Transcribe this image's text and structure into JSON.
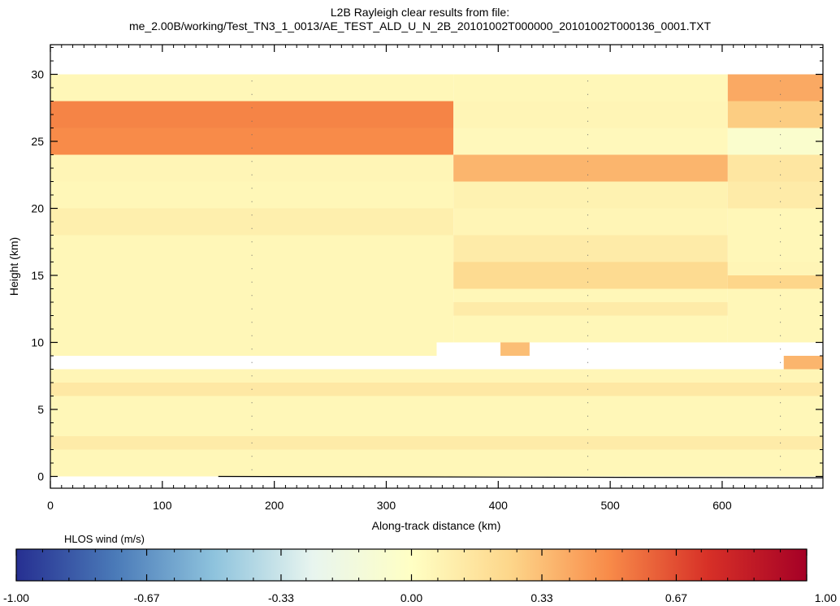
{
  "chart_data": {
    "type": "heatmap",
    "title_line1": "L2B Rayleigh clear results from file:",
    "title_line2": "me_2.00B/working/Test_TN3_1_0013/AE_TEST_ALD_U_N_2B_20101002T000000_20101002T000136_0001.TXT",
    "xlabel": "Along-track distance (km)",
    "ylabel": "Height (km)",
    "xlim": [
      0,
      690
    ],
    "ylim": [
      -1,
      32
    ],
    "xticks": [
      "0",
      "100",
      "200",
      "300",
      "400",
      "500",
      "600"
    ],
    "yticks": [
      "0",
      "5",
      "10",
      "15",
      "20",
      "25",
      "30"
    ],
    "colorbar": {
      "label": "HLOS wind (m/s)",
      "range": [
        -1.0,
        1.0
      ],
      "ticks": [
        "-1.00",
        "-0.67",
        "-0.33",
        "0.00",
        "0.33",
        "0.67",
        "1.00"
      ],
      "colors": [
        "#262f91",
        "#4a7ab8",
        "#8ec3dd",
        "#e8f5ef",
        "#ffffc4",
        "#fdd68a",
        "#f88b49",
        "#d73027",
        "#a50026"
      ]
    },
    "cells": [
      {
        "x0": 0,
        "x1": 360,
        "y0": 28,
        "y1": 30,
        "v": 0.05
      },
      {
        "x0": 0,
        "x1": 360,
        "y0": 26,
        "y1": 28,
        "v": 0.52
      },
      {
        "x0": 0,
        "x1": 360,
        "y0": 24,
        "y1": 26,
        "v": 0.5
      },
      {
        "x0": 0,
        "x1": 360,
        "y0": 22,
        "y1": 24,
        "v": 0.06
      },
      {
        "x0": 0,
        "x1": 360,
        "y0": 20,
        "y1": 22,
        "v": 0.05
      },
      {
        "x0": 0,
        "x1": 360,
        "y0": 18,
        "y1": 20,
        "v": 0.1
      },
      {
        "x0": 0,
        "x1": 360,
        "y0": 16,
        "y1": 18,
        "v": 0.05
      },
      {
        "x0": 0,
        "x1": 360,
        "y0": 14,
        "y1": 16,
        "v": 0.05
      },
      {
        "x0": 0,
        "x1": 360,
        "y0": 12,
        "y1": 14,
        "v": 0.05
      },
      {
        "x0": 0,
        "x1": 360,
        "y0": 10,
        "y1": 12,
        "v": 0.05
      },
      {
        "x0": 0,
        "x1": 345,
        "y0": 9,
        "y1": 10,
        "v": 0.05
      },
      {
        "x0": 0,
        "x1": 690,
        "y0": 7,
        "y1": 8,
        "v": 0.06
      },
      {
        "x0": 0,
        "x1": 690,
        "y0": 6,
        "y1": 7,
        "v": 0.14
      },
      {
        "x0": 0,
        "x1": 690,
        "y0": 4,
        "y1": 6,
        "v": 0.05
      },
      {
        "x0": 0,
        "x1": 690,
        "y0": 3,
        "y1": 4,
        "v": 0.05
      },
      {
        "x0": 0,
        "x1": 690,
        "y0": 2,
        "y1": 3,
        "v": 0.12
      },
      {
        "x0": 0,
        "x1": 690,
        "y0": 0,
        "y1": 2,
        "v": 0.05
      },
      {
        "x0": 360,
        "x1": 605,
        "y0": 28,
        "y1": 30,
        "v": 0.05
      },
      {
        "x0": 360,
        "x1": 605,
        "y0": 26,
        "y1": 28,
        "v": 0.06
      },
      {
        "x0": 360,
        "x1": 605,
        "y0": 24,
        "y1": 26,
        "v": 0.04
      },
      {
        "x0": 360,
        "x1": 605,
        "y0": 22,
        "y1": 24,
        "v": 0.36
      },
      {
        "x0": 360,
        "x1": 605,
        "y0": 20,
        "y1": 22,
        "v": 0.08
      },
      {
        "x0": 360,
        "x1": 605,
        "y0": 18,
        "y1": 20,
        "v": 0.06
      },
      {
        "x0": 360,
        "x1": 605,
        "y0": 16,
        "y1": 18,
        "v": 0.12
      },
      {
        "x0": 360,
        "x1": 605,
        "y0": 14,
        "y1": 16,
        "v": 0.22
      },
      {
        "x0": 360,
        "x1": 605,
        "y0": 13,
        "y1": 14,
        "v": 0.05
      },
      {
        "x0": 360,
        "x1": 605,
        "y0": 12,
        "y1": 13,
        "v": 0.12
      },
      {
        "x0": 360,
        "x1": 605,
        "y0": 10,
        "y1": 12,
        "v": 0.05
      },
      {
        "x0": 402,
        "x1": 428,
        "y0": 9,
        "y1": 10,
        "v": 0.33
      },
      {
        "x0": 605,
        "x1": 690,
        "y0": 28,
        "y1": 30,
        "v": 0.4
      },
      {
        "x0": 605,
        "x1": 690,
        "y0": 26,
        "y1": 28,
        "v": 0.28
      },
      {
        "x0": 605,
        "x1": 690,
        "y0": 24,
        "y1": 26,
        "v": -0.05
      },
      {
        "x0": 605,
        "x1": 690,
        "y0": 22,
        "y1": 24,
        "v": 0.15
      },
      {
        "x0": 605,
        "x1": 690,
        "y0": 20,
        "y1": 22,
        "v": 0.12
      },
      {
        "x0": 605,
        "x1": 690,
        "y0": 18,
        "y1": 20,
        "v": 0.05
      },
      {
        "x0": 605,
        "x1": 690,
        "y0": 16,
        "y1": 18,
        "v": 0.05
      },
      {
        "x0": 605,
        "x1": 690,
        "y0": 15,
        "y1": 16,
        "v": 0.06
      },
      {
        "x0": 605,
        "x1": 690,
        "y0": 14,
        "y1": 15,
        "v": 0.25
      },
      {
        "x0": 605,
        "x1": 690,
        "y0": 10,
        "y1": 14,
        "v": 0.05
      },
      {
        "x0": 655,
        "x1": 690,
        "y0": 8,
        "y1": 9,
        "v": 0.36
      }
    ],
    "ground_line": [
      [
        150,
        0.0
      ],
      [
        690,
        -0.1
      ]
    ],
    "profile_dots_x": [
      180,
      480,
      652
    ]
  }
}
